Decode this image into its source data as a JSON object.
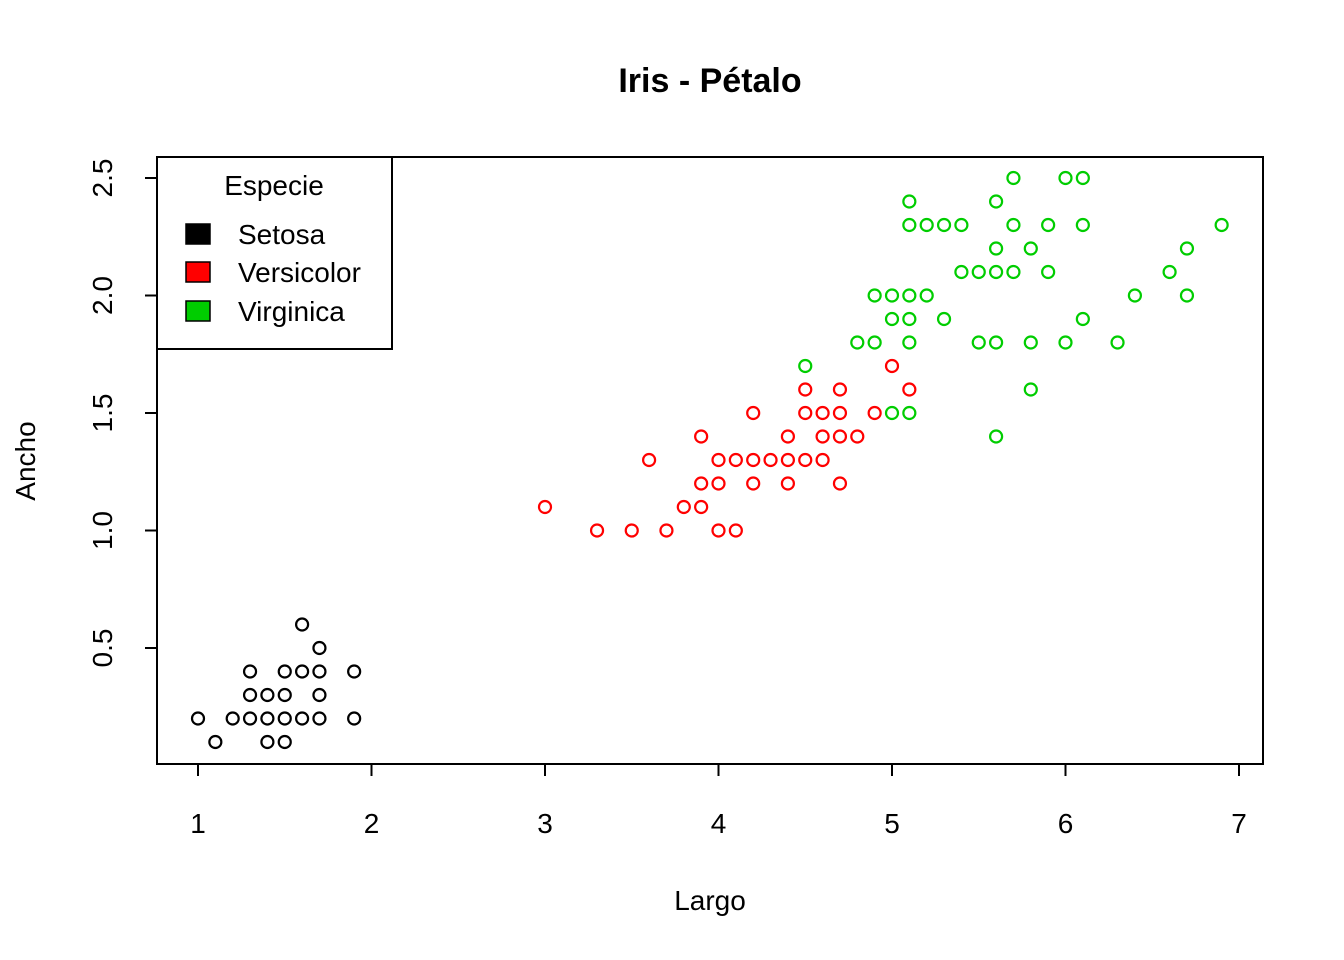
{
  "chart_data": {
    "type": "scatter",
    "title": "Iris - Pétalo",
    "xlabel": "Largo",
    "ylabel": "Ancho",
    "xlim": [
      0.76,
      7.14
    ],
    "ylim": [
      -0.0,
      2.6
    ],
    "x_ticks": [
      1,
      2,
      3,
      4,
      5,
      6,
      7
    ],
    "y_ticks": [
      0.5,
      1.0,
      1.5,
      2.0,
      2.5
    ],
    "x_tick_labels": [
      "1",
      "2",
      "3",
      "4",
      "5",
      "6",
      "7"
    ],
    "y_tick_labels": [
      "0.5",
      "1.0",
      "1.5",
      "2.0",
      "2.5"
    ],
    "grid": false,
    "legend": {
      "title": "Especie",
      "position": "top-left",
      "entries": [
        "Setosa",
        "Versicolor",
        "Virginica"
      ]
    },
    "series": [
      {
        "name": "Setosa",
        "color": "#000000",
        "points": [
          [
            1.0,
            0.2
          ],
          [
            1.1,
            0.1
          ],
          [
            1.2,
            0.2
          ],
          [
            1.3,
            0.2
          ],
          [
            1.3,
            0.3
          ],
          [
            1.3,
            0.4
          ],
          [
            1.4,
            0.1
          ],
          [
            1.4,
            0.2
          ],
          [
            1.4,
            0.3
          ],
          [
            1.5,
            0.1
          ],
          [
            1.5,
            0.2
          ],
          [
            1.5,
            0.3
          ],
          [
            1.5,
            0.4
          ],
          [
            1.6,
            0.2
          ],
          [
            1.6,
            0.4
          ],
          [
            1.6,
            0.6
          ],
          [
            1.7,
            0.2
          ],
          [
            1.7,
            0.3
          ],
          [
            1.7,
            0.4
          ],
          [
            1.7,
            0.5
          ],
          [
            1.9,
            0.2
          ],
          [
            1.9,
            0.4
          ]
        ]
      },
      {
        "name": "Versicolor",
        "color": "#ff0000",
        "points": [
          [
            3.0,
            1.1
          ],
          [
            3.3,
            1.0
          ],
          [
            3.5,
            1.0
          ],
          [
            3.6,
            1.3
          ],
          [
            3.7,
            1.0
          ],
          [
            3.8,
            1.1
          ],
          [
            3.9,
            1.1
          ],
          [
            3.9,
            1.2
          ],
          [
            3.9,
            1.4
          ],
          [
            4.0,
            1.0
          ],
          [
            4.0,
            1.2
          ],
          [
            4.0,
            1.3
          ],
          [
            4.1,
            1.0
          ],
          [
            4.1,
            1.3
          ],
          [
            4.2,
            1.2
          ],
          [
            4.2,
            1.3
          ],
          [
            4.2,
            1.5
          ],
          [
            4.3,
            1.3
          ],
          [
            4.4,
            1.2
          ],
          [
            4.4,
            1.3
          ],
          [
            4.4,
            1.4
          ],
          [
            4.5,
            1.3
          ],
          [
            4.5,
            1.5
          ],
          [
            4.5,
            1.6
          ],
          [
            4.6,
            1.3
          ],
          [
            4.6,
            1.4
          ],
          [
            4.6,
            1.5
          ],
          [
            4.7,
            1.2
          ],
          [
            4.7,
            1.4
          ],
          [
            4.7,
            1.5
          ],
          [
            4.7,
            1.6
          ],
          [
            4.8,
            1.4
          ],
          [
            4.9,
            1.5
          ],
          [
            5.0,
            1.7
          ],
          [
            5.1,
            1.6
          ]
        ]
      },
      {
        "name": "Virginica",
        "color": "#00cd00",
        "points": [
          [
            4.5,
            1.7
          ],
          [
            4.8,
            1.8
          ],
          [
            4.9,
            1.8
          ],
          [
            4.9,
            2.0
          ],
          [
            5.0,
            1.5
          ],
          [
            5.0,
            1.9
          ],
          [
            5.0,
            2.0
          ],
          [
            5.1,
            1.5
          ],
          [
            5.1,
            1.8
          ],
          [
            5.1,
            1.9
          ],
          [
            5.1,
            2.0
          ],
          [
            5.1,
            2.3
          ],
          [
            5.1,
            2.4
          ],
          [
            5.2,
            2.0
          ],
          [
            5.2,
            2.3
          ],
          [
            5.3,
            1.9
          ],
          [
            5.3,
            2.3
          ],
          [
            5.4,
            2.1
          ],
          [
            5.4,
            2.3
          ],
          [
            5.5,
            1.8
          ],
          [
            5.5,
            2.1
          ],
          [
            5.6,
            1.4
          ],
          [
            5.6,
            1.8
          ],
          [
            5.6,
            2.1
          ],
          [
            5.6,
            2.2
          ],
          [
            5.6,
            2.4
          ],
          [
            5.7,
            2.1
          ],
          [
            5.7,
            2.3
          ],
          [
            5.7,
            2.5
          ],
          [
            5.8,
            1.6
          ],
          [
            5.8,
            1.8
          ],
          [
            5.8,
            2.2
          ],
          [
            5.9,
            2.1
          ],
          [
            5.9,
            2.3
          ],
          [
            6.0,
            1.8
          ],
          [
            6.0,
            2.5
          ],
          [
            6.1,
            1.9
          ],
          [
            6.1,
            2.3
          ],
          [
            6.1,
            2.5
          ],
          [
            6.3,
            1.8
          ],
          [
            6.4,
            2.0
          ],
          [
            6.6,
            2.1
          ],
          [
            6.7,
            2.0
          ],
          [
            6.7,
            2.2
          ],
          [
            6.9,
            2.3
          ]
        ]
      }
    ]
  }
}
